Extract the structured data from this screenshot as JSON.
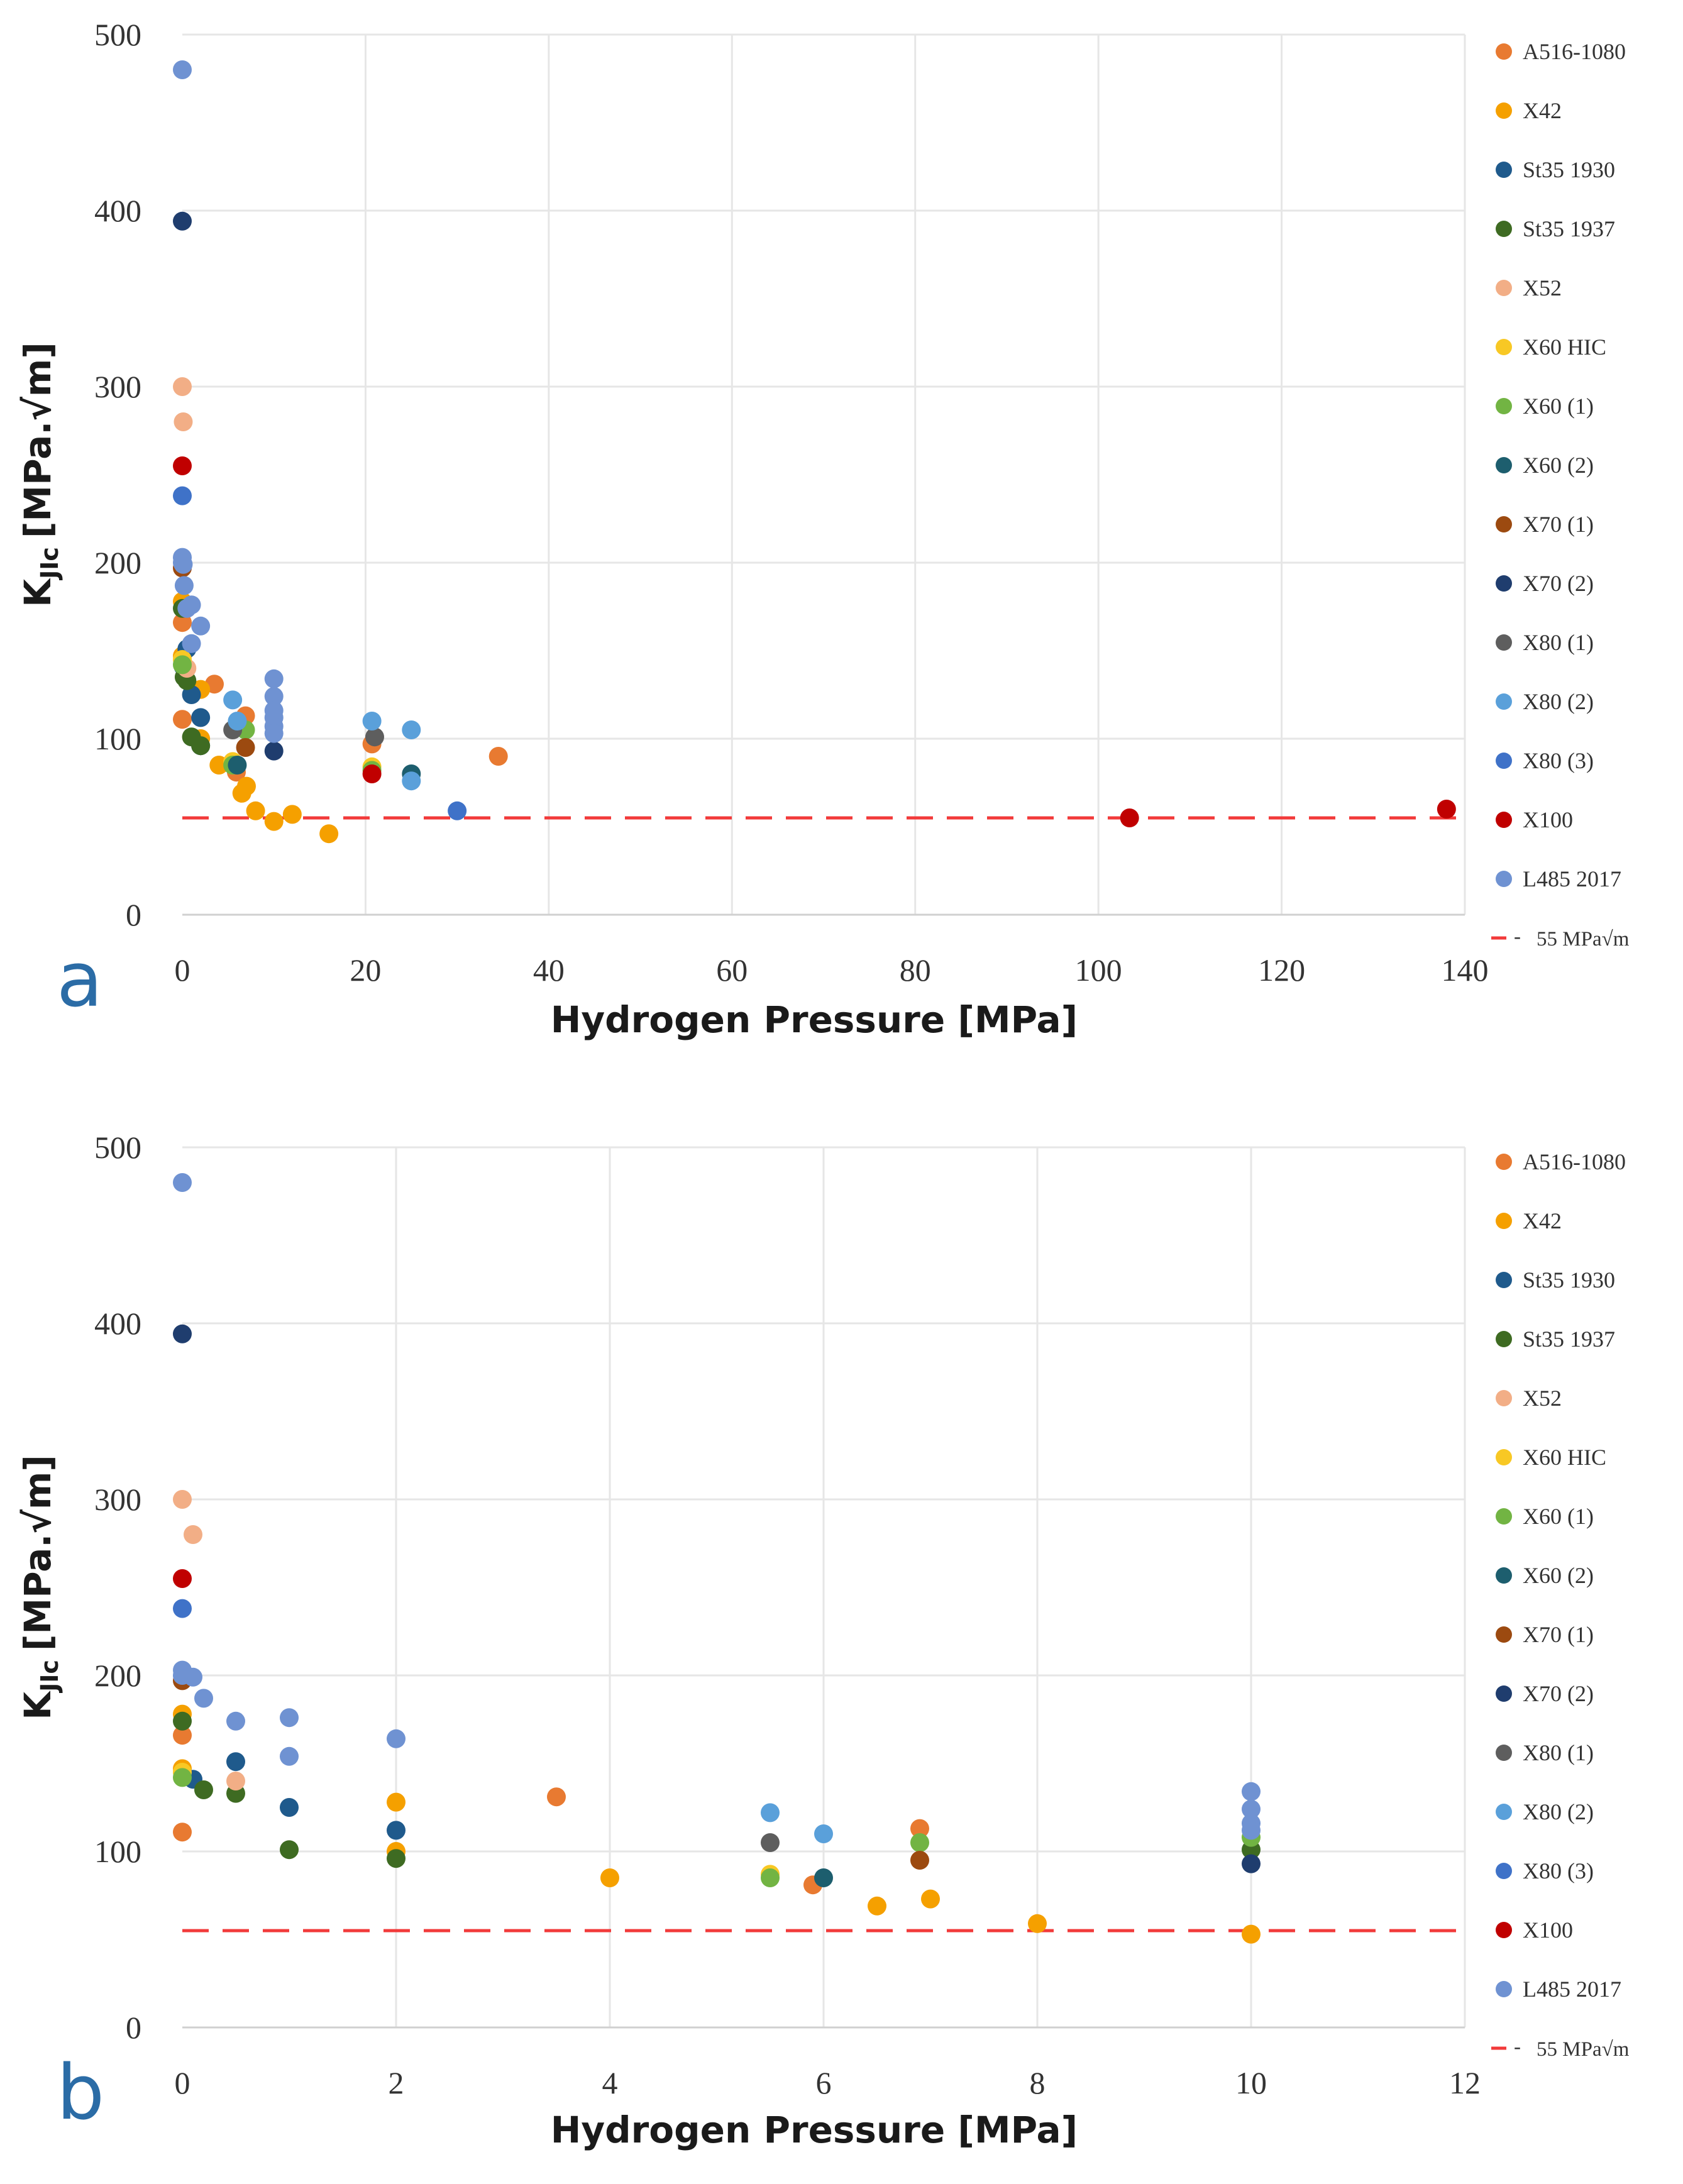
{
  "colors": {
    "A516-1080": "#E87A31",
    "X42": "#F5A000",
    "St35 1930": "#1F5A8C",
    "St35 1937": "#3E6B22",
    "X52": "#F2AE86",
    "X60 HIC": "#F8C824",
    "X60 (1)": "#72B443",
    "X60 (2)": "#1D5E6E",
    "X70 (1)": "#9C4A10",
    "X70 (2)": "#1F3D6E",
    "X80 (1)": "#5E5E5E",
    "X80 (2)": "#5AA0DA",
    "X80 (3)": "#3F72C8",
    "X100": "#C00000",
    "L485 2017": "#6F92D2",
    "threshold": "#F23A3A"
  },
  "legend": {
    "series": [
      "A516-1080",
      "X42",
      "St35 1930",
      "St35 1937",
      "X52",
      "X60 HIC",
      "X60 (1)",
      "X60 (2)",
      "X70 (1)",
      "X70 (2)",
      "X80 (1)",
      "X80 (2)",
      "X80 (3)",
      "X100",
      "L485 2017"
    ],
    "threshold_label": "55 MPa√m"
  },
  "chart_data": [
    {
      "panel": "a",
      "type": "scatter",
      "xlabel": "Hydrogen Pressure [MPa]",
      "ylabel_main": "K",
      "ylabel_sub": "JIc",
      "ylabel_unit": "[MPa.√m]",
      "xlim": [
        0,
        140
      ],
      "ylim": [
        0,
        500
      ],
      "xticks": [
        0,
        20,
        40,
        60,
        80,
        100,
        120,
        140
      ],
      "yticks": [
        0,
        100,
        200,
        300,
        400,
        500
      ],
      "threshold": 55,
      "series": [
        {
          "name": "A516-1080",
          "points": [
            [
              0,
              111
            ],
            [
              0,
              166
            ],
            [
              3.5,
              131
            ],
            [
              5.9,
              81
            ],
            [
              6.9,
              113
            ],
            [
              34.5,
              90
            ],
            [
              20.7,
              97
            ]
          ]
        },
        {
          "name": "X42",
          "points": [
            [
              0,
              147
            ],
            [
              0,
              178
            ],
            [
              2,
              128
            ],
            [
              2,
              100
            ],
            [
              4,
              85
            ],
            [
              6.5,
              69
            ],
            [
              7,
              73
            ],
            [
              8,
              59
            ],
            [
              10,
              53
            ],
            [
              12,
              57
            ],
            [
              16,
              46
            ]
          ]
        },
        {
          "name": "St35 1930",
          "points": [
            [
              0.1,
              141
            ],
            [
              0.5,
              151
            ],
            [
              1,
              125
            ],
            [
              2,
              112
            ],
            [
              2,
              96
            ]
          ]
        },
        {
          "name": "St35 1937",
          "points": [
            [
              0,
              174
            ],
            [
              0.2,
              135
            ],
            [
              0.5,
              133
            ],
            [
              1,
              101
            ],
            [
              2,
              96
            ]
          ]
        },
        {
          "name": "X52",
          "points": [
            [
              0,
              300
            ],
            [
              0.1,
              280
            ],
            [
              0.5,
              140
            ]
          ]
        },
        {
          "name": "X60 HIC",
          "points": [
            [
              0,
              145
            ],
            [
              5.5,
              87
            ],
            [
              20.7,
              84
            ]
          ]
        },
        {
          "name": "X60 (1)",
          "points": [
            [
              0,
              142
            ],
            [
              5.5,
              85
            ],
            [
              6.9,
              105
            ],
            [
              20.7,
              82
            ]
          ]
        },
        {
          "name": "X60 (2)",
          "points": [
            [
              6,
              85
            ],
            [
              25,
              80
            ]
          ]
        },
        {
          "name": "X70 (1)",
          "points": [
            [
              0,
              197
            ],
            [
              6.9,
              95
            ]
          ]
        },
        {
          "name": "X70 (2)",
          "points": [
            [
              0,
              394
            ],
            [
              10,
              93
            ]
          ]
        },
        {
          "name": "X80 (1)",
          "points": [
            [
              5.5,
              105
            ],
            [
              21,
              101
            ]
          ]
        },
        {
          "name": "X80 (2)",
          "points": [
            [
              5.5,
              122
            ],
            [
              6,
              110
            ],
            [
              20.7,
              110
            ],
            [
              25,
              105
            ],
            [
              25,
              76
            ]
          ]
        },
        {
          "name": "X80 (3)",
          "points": [
            [
              0,
              238
            ],
            [
              30,
              59
            ]
          ]
        },
        {
          "name": "X100",
          "points": [
            [
              0,
              255
            ],
            [
              20.7,
              80
            ],
            [
              103.4,
              55
            ],
            [
              138,
              60
            ]
          ]
        },
        {
          "name": "L485 2017",
          "points": [
            [
              0,
              480
            ],
            [
              0,
              203
            ],
            [
              0,
              200
            ],
            [
              0.1,
              199
            ],
            [
              0.2,
              187
            ],
            [
              0.5,
              174
            ],
            [
              1,
              176
            ],
            [
              1,
              154
            ],
            [
              2,
              164
            ],
            [
              10,
              134
            ],
            [
              10,
              124
            ],
            [
              10,
              116
            ],
            [
              10,
              112
            ],
            [
              10,
              107
            ],
            [
              10,
              103
            ]
          ]
        }
      ]
    },
    {
      "panel": "b",
      "type": "scatter",
      "xlabel": "Hydrogen Pressure [MPa]",
      "ylabel_main": "K",
      "ylabel_sub": "JIc",
      "ylabel_unit": "[MPa.√m]",
      "xlim": [
        0,
        12
      ],
      "ylim": [
        0,
        500
      ],
      "xticks": [
        0,
        2,
        4,
        6,
        8,
        10,
        12
      ],
      "yticks": [
        0,
        100,
        200,
        300,
        400,
        500
      ],
      "threshold": 55,
      "series": [
        {
          "name": "A516-1080",
          "points": [
            [
              0,
              111
            ],
            [
              0,
              166
            ],
            [
              3.5,
              131
            ],
            [
              5.9,
              81
            ],
            [
              6.9,
              113
            ]
          ]
        },
        {
          "name": "X42",
          "points": [
            [
              0,
              147
            ],
            [
              0,
              178
            ],
            [
              2,
              128
            ],
            [
              2,
              100
            ],
            [
              4,
              85
            ],
            [
              6.5,
              69
            ],
            [
              7,
              73
            ],
            [
              8,
              59
            ],
            [
              10,
              53
            ]
          ]
        },
        {
          "name": "St35 1930",
          "points": [
            [
              0.1,
              141
            ],
            [
              0.5,
              151
            ],
            [
              1,
              125
            ],
            [
              2,
              112
            ]
          ]
        },
        {
          "name": "St35 1937",
          "points": [
            [
              0,
              174
            ],
            [
              0.2,
              135
            ],
            [
              0.5,
              133
            ],
            [
              1,
              101
            ],
            [
              2,
              96
            ],
            [
              10,
              101
            ]
          ]
        },
        {
          "name": "X52",
          "points": [
            [
              0,
              300
            ],
            [
              0.1,
              280
            ],
            [
              0.5,
              140
            ]
          ]
        },
        {
          "name": "X60 HIC",
          "points": [
            [
              0,
              145
            ],
            [
              5.5,
              87
            ]
          ]
        },
        {
          "name": "X60 (1)",
          "points": [
            [
              0,
              142
            ],
            [
              5.5,
              85
            ],
            [
              6.9,
              105
            ],
            [
              10,
              108
            ]
          ]
        },
        {
          "name": "X60 (2)",
          "points": [
            [
              6,
              85
            ]
          ]
        },
        {
          "name": "X70 (1)",
          "points": [
            [
              0,
              197
            ],
            [
              6.9,
              95
            ]
          ]
        },
        {
          "name": "X70 (2)",
          "points": [
            [
              0,
              394
            ],
            [
              10,
              93
            ]
          ]
        },
        {
          "name": "X80 (1)",
          "points": [
            [
              5.5,
              105
            ]
          ]
        },
        {
          "name": "X80 (2)",
          "points": [
            [
              5.5,
              122
            ],
            [
              6,
              110
            ]
          ]
        },
        {
          "name": "X80 (3)",
          "points": [
            [
              0,
              238
            ]
          ]
        },
        {
          "name": "X100",
          "points": [
            [
              0,
              255
            ]
          ]
        },
        {
          "name": "L485 2017",
          "points": [
            [
              0,
              480
            ],
            [
              0,
              203
            ],
            [
              0,
              200
            ],
            [
              0.1,
              199
            ],
            [
              0.2,
              187
            ],
            [
              0.5,
              174
            ],
            [
              1,
              176
            ],
            [
              1,
              154
            ],
            [
              2,
              164
            ],
            [
              10,
              134
            ],
            [
              10,
              124
            ],
            [
              10,
              116
            ],
            [
              10,
              112
            ]
          ]
        }
      ]
    }
  ]
}
